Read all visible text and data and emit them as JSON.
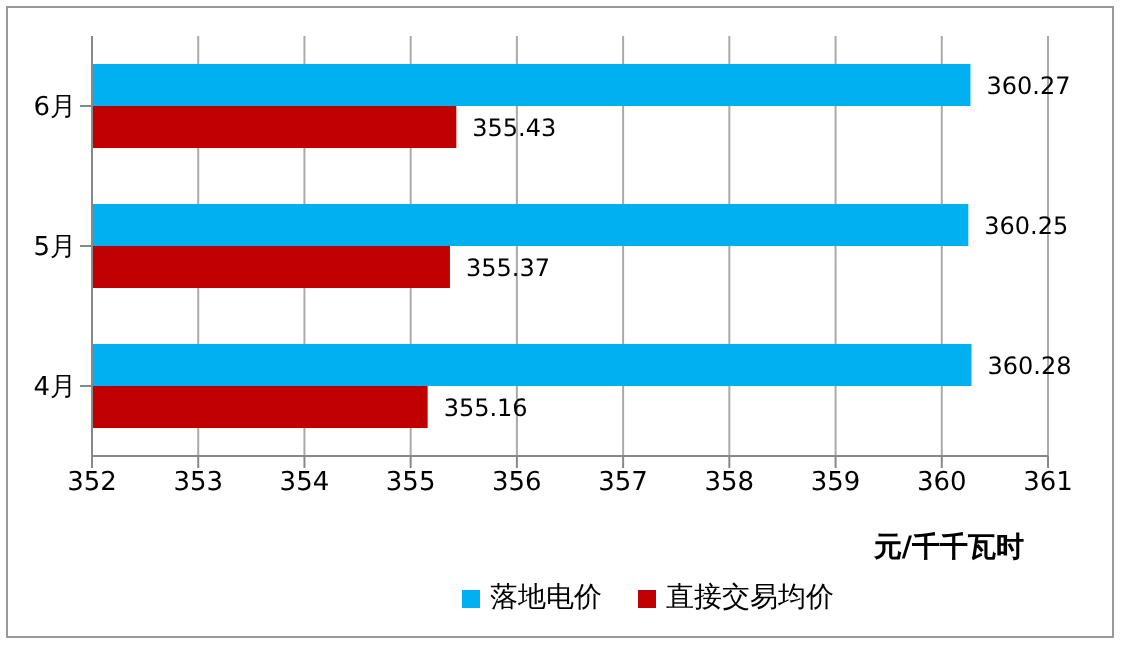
{
  "chart_data": {
    "type": "bar",
    "orientation": "horizontal",
    "categories": [
      "6月",
      "5月",
      "4月"
    ],
    "series": [
      {
        "name": "落地电价",
        "color": "#00b0f0",
        "values": [
          360.27,
          360.25,
          360.28
        ]
      },
      {
        "name": "直接交易均价",
        "color": "#c00000",
        "values": [
          355.43,
          355.37,
          355.16
        ]
      }
    ],
    "xlabel": "元/千千瓦时",
    "xlim": [
      352,
      361
    ],
    "xticks": [
      352,
      353,
      354,
      355,
      356,
      357,
      358,
      359,
      360,
      361
    ],
    "grid": "x",
    "legend": "bottom",
    "data_labels": true
  }
}
